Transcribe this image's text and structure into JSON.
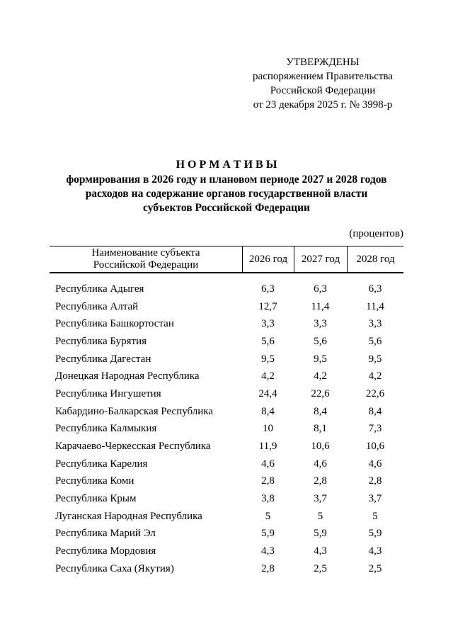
{
  "colors": {
    "background": "#ffffff",
    "text": "#000000",
    "rule": "#000000"
  },
  "approval": {
    "lines": [
      "УТВЕРЖДЕНЫ",
      "распоряжением Правительства",
      "Российской Федерации",
      "от 23 декабря 2025 г. № 3998-р"
    ]
  },
  "title": {
    "heading": "Н О Р М А Т И В Ы",
    "lines": [
      "формирования в 2026 году и плановом периоде 2027 и 2028 годов",
      "расходов на содержание органов государственной власти",
      "субъектов Российской Федерации"
    ]
  },
  "unit_note": "(процентов)",
  "table": {
    "name_header": {
      "line1": "Наименование субъекта",
      "line2": "Российской Федерации"
    },
    "year_headers": [
      "2026 год",
      "2027 год",
      "2028 год"
    ],
    "rows": [
      {
        "name": "Республика Адыгея",
        "y2026": "6,3",
        "y2027": "6,3",
        "y2028": "6,3"
      },
      {
        "name": "Республика Алтай",
        "y2026": "12,7",
        "y2027": "11,4",
        "y2028": "11,4"
      },
      {
        "name": "Республика Башкортостан",
        "y2026": "3,3",
        "y2027": "3,3",
        "y2028": "3,3"
      },
      {
        "name": "Республика Бурятия",
        "y2026": "5,6",
        "y2027": "5,6",
        "y2028": "5,6"
      },
      {
        "name": "Республика Дагестан",
        "y2026": "9,5",
        "y2027": "9,5",
        "y2028": "9,5"
      },
      {
        "name": "Донецкая Народная Республика",
        "y2026": "4,2",
        "y2027": "4,2",
        "y2028": "4,2"
      },
      {
        "name": "Республика Ингушетия",
        "y2026": "24,4",
        "y2027": "22,6",
        "y2028": "22,6"
      },
      {
        "name": "Кабардино-Балкарская Республика",
        "y2026": "8,4",
        "y2027": "8,4",
        "y2028": "8,4"
      },
      {
        "name": "Республика Калмыкия",
        "y2026": "10",
        "y2027": "8,1",
        "y2028": "7,3"
      },
      {
        "name": "Карачаево-Черкесская Республика",
        "y2026": "11,9",
        "y2027": "10,6",
        "y2028": "10,6"
      },
      {
        "name": "Республика Карелия",
        "y2026": "4,6",
        "y2027": "4,6",
        "y2028": "4,6"
      },
      {
        "name": "Республика Коми",
        "y2026": "2,8",
        "y2027": "2,8",
        "y2028": "2,8"
      },
      {
        "name": "Республика Крым",
        "y2026": "3,8",
        "y2027": "3,7",
        "y2028": "3,7"
      },
      {
        "name": "Луганская Народная Республика",
        "y2026": "5",
        "y2027": "5",
        "y2028": "5"
      },
      {
        "name": "Республика Марий Эл",
        "y2026": "5,9",
        "y2027": "5,9",
        "y2028": "5,9"
      },
      {
        "name": "Республика Мордовия",
        "y2026": "4,3",
        "y2027": "4,3",
        "y2028": "4,3"
      },
      {
        "name": "Республика Саха (Якутия)",
        "y2026": "2,8",
        "y2027": "2,5",
        "y2028": "2,5"
      }
    ]
  }
}
